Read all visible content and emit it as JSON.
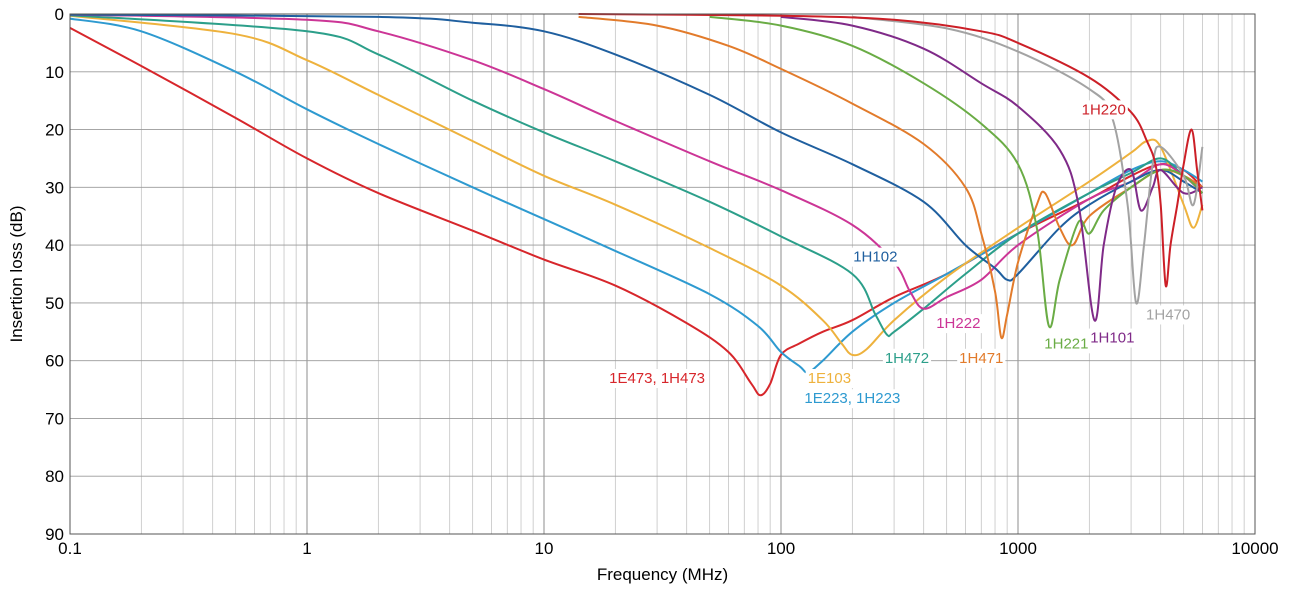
{
  "chart_data": {
    "type": "line",
    "xlabel": "Frequency (MHz)",
    "ylabel": "Insertion loss (dB)",
    "xscale": "log",
    "xlim": [
      0.1,
      10000
    ],
    "ylim": [
      0,
      90
    ],
    "y_inverted": true,
    "grid": true,
    "x_ticks": [
      {
        "value": 0.1,
        "label": "0.1"
      },
      {
        "value": 1,
        "label": "1"
      },
      {
        "value": 10,
        "label": "10"
      },
      {
        "value": 100,
        "label": "100"
      },
      {
        "value": 1000,
        "label": "1000"
      },
      {
        "value": 10000,
        "label": "10000"
      }
    ],
    "y_ticks": [
      0,
      10,
      20,
      30,
      40,
      50,
      60,
      70,
      80,
      90
    ],
    "series": [
      {
        "name": "1E473, 1H473",
        "color": "#d7262b",
        "points": [
          [
            0.1,
            2.4
          ],
          [
            0.2,
            9
          ],
          [
            0.5,
            18
          ],
          [
            1,
            25
          ],
          [
            2,
            31
          ],
          [
            5,
            37.5
          ],
          [
            10,
            42.5
          ],
          [
            20,
            47
          ],
          [
            40,
            53.5
          ],
          [
            60,
            58.5
          ],
          [
            75,
            64
          ],
          [
            82,
            66
          ],
          [
            90,
            64
          ],
          [
            100,
            59
          ],
          [
            120,
            57
          ],
          [
            150,
            55
          ],
          [
            200,
            53
          ],
          [
            300,
            49
          ],
          [
            500,
            45
          ],
          [
            1000,
            38
          ],
          [
            2000,
            32
          ],
          [
            3000,
            28
          ],
          [
            4000,
            26
          ],
          [
            5000,
            27
          ],
          [
            6000,
            30
          ]
        ]
      },
      {
        "name": "1E223, 1H223",
        "color": "#2e9ad0",
        "points": [
          [
            0.1,
            0.8
          ],
          [
            0.2,
            3
          ],
          [
            0.5,
            10
          ],
          [
            1,
            16.5
          ],
          [
            2,
            22.5
          ],
          [
            5,
            30
          ],
          [
            10,
            35.5
          ],
          [
            20,
            41
          ],
          [
            50,
            48.5
          ],
          [
            80,
            54
          ],
          [
            100,
            58.5
          ],
          [
            120,
            61
          ],
          [
            130,
            62
          ],
          [
            150,
            60
          ],
          [
            200,
            55
          ],
          [
            300,
            50
          ],
          [
            500,
            45
          ],
          [
            1000,
            38
          ],
          [
            2000,
            31
          ],
          [
            3000,
            27
          ],
          [
            4000,
            25.5
          ],
          [
            5000,
            27
          ],
          [
            6000,
            29
          ]
        ]
      },
      {
        "name": "1E103",
        "color": "#eeb23d",
        "points": [
          [
            0.1,
            0.3
          ],
          [
            0.5,
            3.5
          ],
          [
            1,
            8
          ],
          [
            2,
            14
          ],
          [
            5,
            22
          ],
          [
            10,
            28
          ],
          [
            20,
            33
          ],
          [
            50,
            40.5
          ],
          [
            100,
            47
          ],
          [
            150,
            53
          ],
          [
            180,
            57
          ],
          [
            200,
            59
          ],
          [
            230,
            58
          ],
          [
            300,
            53
          ],
          [
            500,
            45.5
          ],
          [
            1000,
            37
          ],
          [
            2000,
            29
          ],
          [
            3000,
            24
          ],
          [
            3500,
            22
          ],
          [
            4000,
            23
          ],
          [
            5000,
            33
          ],
          [
            5500,
            37
          ],
          [
            6000,
            33
          ]
        ]
      },
      {
        "name": "1H472",
        "color": "#2c9f8a",
        "points": [
          [
            0.1,
            0.2
          ],
          [
            1,
            3
          ],
          [
            2,
            7
          ],
          [
            5,
            15
          ],
          [
            10,
            20.5
          ],
          [
            20,
            25.5
          ],
          [
            50,
            32.5
          ],
          [
            100,
            38.5
          ],
          [
            200,
            45
          ],
          [
            250,
            52
          ],
          [
            280,
            55.5
          ],
          [
            300,
            55
          ],
          [
            400,
            51
          ],
          [
            600,
            45
          ],
          [
            1000,
            38
          ],
          [
            2000,
            31
          ],
          [
            3000,
            27.5
          ],
          [
            4000,
            25
          ],
          [
            5000,
            28
          ],
          [
            6000,
            30
          ]
        ]
      },
      {
        "name": "1H222",
        "color": "#cc3596",
        "points": [
          [
            0.1,
            0.1
          ],
          [
            1,
            1
          ],
          [
            2,
            3
          ],
          [
            5,
            8
          ],
          [
            10,
            13
          ],
          [
            20,
            18.5
          ],
          [
            50,
            25.5
          ],
          [
            100,
            30.5
          ],
          [
            200,
            36.5
          ],
          [
            300,
            43
          ],
          [
            350,
            48
          ],
          [
            400,
            51
          ],
          [
            500,
            49
          ],
          [
            700,
            46
          ],
          [
            1000,
            40
          ],
          [
            2000,
            32
          ],
          [
            3000,
            29
          ],
          [
            4000,
            26
          ],
          [
            5000,
            28
          ],
          [
            6000,
            31
          ]
        ]
      },
      {
        "name": "1H102",
        "color": "#1f5f9f",
        "points": [
          [
            0.1,
            0.1
          ],
          [
            2,
            0.5
          ],
          [
            5,
            1.5
          ],
          [
            10,
            3
          ],
          [
            20,
            7
          ],
          [
            50,
            14
          ],
          [
            100,
            20.5
          ],
          [
            200,
            26
          ],
          [
            400,
            32.5
          ],
          [
            600,
            40
          ],
          [
            800,
            44
          ],
          [
            900,
            46
          ],
          [
            1000,
            45
          ],
          [
            1500,
            37
          ],
          [
            2000,
            33
          ],
          [
            3000,
            29
          ],
          [
            4000,
            27
          ],
          [
            5000,
            29
          ],
          [
            6000,
            31
          ]
        ]
      },
      {
        "name": "1H471",
        "color": "#e27b2b",
        "points": [
          [
            14,
            0.5
          ],
          [
            30,
            2
          ],
          [
            60,
            5.5
          ],
          [
            100,
            9.5
          ],
          [
            200,
            15.5
          ],
          [
            400,
            22.5
          ],
          [
            600,
            30
          ],
          [
            700,
            38
          ],
          [
            800,
            48
          ],
          [
            850,
            56
          ],
          [
            900,
            52
          ],
          [
            1000,
            43
          ],
          [
            1200,
            33
          ],
          [
            1300,
            31
          ],
          [
            1500,
            37
          ],
          [
            1700,
            40
          ],
          [
            2000,
            35
          ],
          [
            3000,
            30
          ],
          [
            4000,
            27
          ],
          [
            5000,
            28
          ],
          [
            6000,
            30
          ]
        ]
      },
      {
        "name": "1H221",
        "color": "#6aac45",
        "points": [
          [
            50,
            0.5
          ],
          [
            100,
            2
          ],
          [
            200,
            5.5
          ],
          [
            400,
            12
          ],
          [
            700,
            19
          ],
          [
            1000,
            26
          ],
          [
            1200,
            37
          ],
          [
            1350,
            54
          ],
          [
            1500,
            46
          ],
          [
            1800,
            36
          ],
          [
            2000,
            38
          ],
          [
            2300,
            34
          ],
          [
            3000,
            30
          ],
          [
            4000,
            27
          ],
          [
            5000,
            28
          ],
          [
            6000,
            31
          ]
        ]
      },
      {
        "name": "1H101",
        "color": "#7f2a88",
        "points": [
          [
            100,
            0.5
          ],
          [
            200,
            2
          ],
          [
            400,
            6
          ],
          [
            700,
            12
          ],
          [
            1000,
            16
          ],
          [
            1500,
            23.5
          ],
          [
            1800,
            33
          ],
          [
            2100,
            53
          ],
          [
            2300,
            40
          ],
          [
            2600,
            30
          ],
          [
            3000,
            27
          ],
          [
            3300,
            34
          ],
          [
            3700,
            30
          ],
          [
            4000,
            27
          ],
          [
            5000,
            31
          ],
          [
            6000,
            30
          ]
        ]
      },
      {
        "name": "1H470",
        "color": "#a3a3a3",
        "points": [
          [
            200,
            0.5
          ],
          [
            500,
            2.5
          ],
          [
            1000,
            6.5
          ],
          [
            2000,
            13
          ],
          [
            2500,
            18
          ],
          [
            2900,
            33
          ],
          [
            3150,
            50
          ],
          [
            3400,
            40
          ],
          [
            3700,
            26
          ],
          [
            4000,
            23
          ],
          [
            5000,
            28
          ],
          [
            5500,
            33
          ],
          [
            6000,
            23
          ]
        ]
      },
      {
        "name": "1H220",
        "color": "#cc1f27",
        "points": [
          [
            14,
            0
          ],
          [
            100,
            0.3
          ],
          [
            300,
            1
          ],
          [
            700,
            3
          ],
          [
            1000,
            5
          ],
          [
            2000,
            11
          ],
          [
            3000,
            17
          ],
          [
            3500,
            22
          ],
          [
            3800,
            26
          ],
          [
            4000,
            33
          ],
          [
            4200,
            47
          ],
          [
            4400,
            40
          ],
          [
            4700,
            33
          ],
          [
            5000,
            26
          ],
          [
            5400,
            20
          ],
          [
            5700,
            27
          ],
          [
            6000,
            34
          ]
        ]
      }
    ],
    "annotations": [
      {
        "text": "1E473, 1H473",
        "x": 30,
        "y": 63,
        "color": "#d7262b"
      },
      {
        "text": "1E223, 1H223",
        "x": 200,
        "y": 66.5,
        "color": "#2e9ad0"
      },
      {
        "text": "1E103",
        "x": 160,
        "y": 63,
        "color": "#eeb23d"
      },
      {
        "text": "1H472",
        "x": 340,
        "y": 59.5,
        "color": "#2c9f8a"
      },
      {
        "text": "1H222",
        "x": 560,
        "y": 53.5,
        "color": "#cc3596"
      },
      {
        "text": "1H102",
        "x": 250,
        "y": 42,
        "color": "#1f5f9f"
      },
      {
        "text": "1H471",
        "x": 700,
        "y": 59.5,
        "color": "#e27b2b"
      },
      {
        "text": "1H221",
        "x": 1600,
        "y": 57,
        "color": "#6aac45"
      },
      {
        "text": "1H101",
        "x": 2500,
        "y": 56,
        "color": "#7f2a88"
      },
      {
        "text": "1H470",
        "x": 4300,
        "y": 52,
        "color": "#a3a3a3"
      },
      {
        "text": "1H220",
        "x": 2300,
        "y": 16.5,
        "color": "#cc1f27"
      }
    ]
  }
}
